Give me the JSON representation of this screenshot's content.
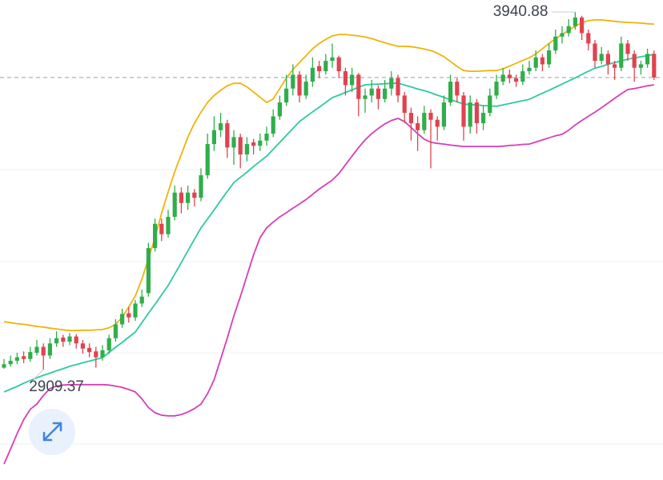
{
  "chart_data": {
    "type": "candlestick",
    "ylim": [
      2591,
      3975.5
    ],
    "up_color": "#2fae4b",
    "down_color": "#e0434f",
    "max_label": 3940.88,
    "min_label": 2909.37,
    "last_price_line": true,
    "open": [
      2915,
      2925,
      2935,
      2948,
      2940,
      2958,
      2975,
      2950,
      2985,
      3002,
      2990,
      3005,
      2985,
      2972,
      2962,
      2945,
      2965,
      3000,
      3040,
      3072,
      3060,
      3100,
      3130,
      3260,
      3330,
      3300,
      3350,
      3420,
      3390,
      3420,
      3405,
      3470,
      3560,
      3600,
      3620,
      3550,
      3580,
      3530,
      3565,
      3555,
      3570,
      3590,
      3640,
      3680,
      3720,
      3760,
      3700,
      3740,
      3785,
      3770,
      3800,
      3810,
      3770,
      3730,
      3760,
      3690,
      3700,
      3720,
      3690,
      3720,
      3750,
      3700,
      3650,
      3620,
      3600,
      3650,
      3630,
      3610,
      3680,
      3740,
      3700,
      3610,
      3680,
      3620,
      3650,
      3700,
      3740,
      3760,
      3750,
      3740,
      3770,
      3780,
      3810,
      3790,
      3830,
      3870,
      3880,
      3900,
      3925,
      3880,
      3850,
      3800,
      3820,
      3790,
      3780,
      3850,
      3820,
      3780,
      3790,
      3820
    ],
    "high": [
      2940,
      2950,
      2958,
      2962,
      2975,
      2995,
      2985,
      3000,
      3020,
      3010,
      3015,
      3012,
      2995,
      2985,
      2975,
      2980,
      3010,
      3055,
      3085,
      3090,
      3110,
      3140,
      3275,
      3345,
      3345,
      3370,
      3440,
      3435,
      3440,
      3430,
      3490,
      3590,
      3640,
      3650,
      3630,
      3600,
      3590,
      3580,
      3575,
      3590,
      3610,
      3660,
      3700,
      3760,
      3790,
      3770,
      3760,
      3810,
      3800,
      3820,
      3850,
      3815,
      3780,
      3780,
      3765,
      3720,
      3745,
      3730,
      3745,
      3770,
      3760,
      3710,
      3665,
      3640,
      3670,
      3660,
      3640,
      3700,
      3760,
      3750,
      3710,
      3700,
      3690,
      3670,
      3720,
      3760,
      3780,
      3775,
      3760,
      3790,
      3800,
      3830,
      3820,
      3850,
      3890,
      3900,
      3920,
      3940.88,
      3930,
      3890,
      3860,
      3840,
      3830,
      3800,
      3870,
      3860,
      3830,
      3800,
      3835,
      3830
    ],
    "low": [
      2912,
      2918,
      2925,
      2928,
      2932,
      2950,
      2909.37,
      2940,
      2975,
      2975,
      2980,
      2970,
      2955,
      2945,
      2915,
      2935,
      2955,
      2990,
      3030,
      3045,
      3050,
      3090,
      3120,
      3250,
      3280,
      3290,
      3340,
      3360,
      3370,
      3380,
      3395,
      3460,
      3540,
      3580,
      3520,
      3500,
      3490,
      3510,
      3530,
      3540,
      3555,
      3580,
      3630,
      3670,
      3700,
      3680,
      3690,
      3725,
      3750,
      3760,
      3780,
      3750,
      3700,
      3710,
      3640,
      3650,
      3680,
      3660,
      3680,
      3700,
      3680,
      3620,
      3570,
      3540,
      3590,
      3490,
      3570,
      3600,
      3670,
      3680,
      3570,
      3590,
      3590,
      3600,
      3640,
      3690,
      3730,
      3735,
      3725,
      3730,
      3760,
      3770,
      3770,
      3780,
      3820,
      3850,
      3870,
      3890,
      3860,
      3830,
      3780,
      3790,
      3760,
      3745,
      3770,
      3800,
      3740,
      3760,
      3780,
      3745
    ],
    "close": [
      2925,
      2935,
      2945,
      2940,
      2960,
      2975,
      2950,
      2985,
      3000,
      2990,
      3005,
      2985,
      2970,
      2960,
      2945,
      2965,
      3000,
      3040,
      3070,
      3060,
      3100,
      3120,
      3260,
      3330,
      3300,
      3350,
      3420,
      3390,
      3420,
      3405,
      3470,
      3560,
      3600,
      3620,
      3550,
      3580,
      3530,
      3560,
      3555,
      3570,
      3590,
      3640,
      3680,
      3720,
      3760,
      3700,
      3740,
      3780,
      3770,
      3800,
      3810,
      3770,
      3730,
      3760,
      3690,
      3700,
      3720,
      3690,
      3720,
      3750,
      3700,
      3650,
      3620,
      3600,
      3650,
      3630,
      3610,
      3680,
      3740,
      3700,
      3610,
      3680,
      3620,
      3650,
      3700,
      3740,
      3760,
      3750,
      3740,
      3770,
      3780,
      3810,
      3790,
      3830,
      3870,
      3880,
      3900,
      3925,
      3880,
      3850,
      3800,
      3820,
      3790,
      3780,
      3850,
      3820,
      3780,
      3790,
      3820,
      3752
    ],
    "bands": {
      "upper": {
        "color": "#f0b30a",
        "values": [
          3048,
          3045,
          3042,
          3040,
          3037,
          3034,
          3032,
          3029,
          3027,
          3024,
          3022,
          3022,
          3023,
          3023,
          3024,
          3025,
          3030,
          3040,
          3060,
          3090,
          3122,
          3170,
          3230,
          3290,
          3360,
          3422,
          3480,
          3530,
          3580,
          3620,
          3652,
          3680,
          3700,
          3715,
          3728,
          3735,
          3735,
          3725,
          3710,
          3695,
          3680,
          3690,
          3720,
          3750,
          3775,
          3795,
          3815,
          3835,
          3850,
          3862,
          3872,
          3876,
          3876,
          3874,
          3872,
          3869,
          3864,
          3858,
          3852,
          3847,
          3842,
          3842,
          3841,
          3838,
          3834,
          3830,
          3822,
          3812,
          3798,
          3784,
          3772,
          3770,
          3770,
          3771,
          3772,
          3772,
          3777,
          3785,
          3793,
          3801,
          3809,
          3820,
          3835,
          3850,
          3864,
          3876,
          3888,
          3900,
          3910,
          3916,
          3918,
          3918,
          3916,
          3914,
          3912,
          3911,
          3910,
          3909,
          3907,
          3906
        ]
      },
      "middle": {
        "color": "#2ec9a2",
        "values": [
          2845,
          2853,
          2861,
          2870,
          2878,
          2886,
          2893,
          2899,
          2906,
          2912,
          2919,
          2924,
          2929,
          2934,
          2939,
          2944,
          2959,
          2974,
          2988,
          3003,
          3018,
          3045,
          3072,
          3098,
          3125,
          3152,
          3185,
          3218,
          3252,
          3285,
          3318,
          3344,
          3370,
          3397,
          3423,
          3449,
          3464,
          3479,
          3495,
          3510,
          3525,
          3545,
          3565,
          3585,
          3605,
          3625,
          3639,
          3653,
          3666,
          3680,
          3694,
          3701,
          3709,
          3716,
          3724,
          3731,
          3732,
          3733,
          3734,
          3735,
          3736,
          3730,
          3725,
          3719,
          3714,
          3708,
          3701,
          3695,
          3688,
          3682,
          3675,
          3674,
          3673,
          3671,
          3670,
          3669,
          3673,
          3677,
          3681,
          3685,
          3689,
          3698,
          3707,
          3715,
          3724,
          3733,
          3742,
          3751,
          3761,
          3770,
          3779,
          3784,
          3790,
          3795,
          3800,
          3805,
          3808,
          3812,
          3815,
          3819
        ]
      },
      "lower": {
        "color": "#d63fb6",
        "values": [
          2637,
          2680,
          2725,
          2765,
          2795,
          2810,
          2835,
          2855,
          2862,
          2865,
          2866,
          2866,
          2866,
          2866,
          2866,
          2866,
          2865,
          2862,
          2858,
          2852,
          2845,
          2825,
          2800,
          2785,
          2778,
          2776,
          2776,
          2780,
          2787,
          2797,
          2810,
          2840,
          2880,
          2940,
          3000,
          3064,
          3120,
          3180,
          3240,
          3290,
          3318,
          3335,
          3350,
          3362,
          3375,
          3387,
          3400,
          3415,
          3430,
          3443,
          3456,
          3475,
          3500,
          3525,
          3550,
          3572,
          3590,
          3605,
          3618,
          3628,
          3634,
          3625,
          3608,
          3590,
          3574,
          3565,
          3562,
          3560,
          3557,
          3555,
          3553,
          3553,
          3553,
          3553,
          3553,
          3553,
          3554,
          3556,
          3557,
          3559,
          3560,
          3566,
          3572,
          3578,
          3584,
          3588,
          3600,
          3615,
          3628,
          3640,
          3652,
          3665,
          3678,
          3692,
          3705,
          3717,
          3720,
          3724,
          3728,
          3731
        ]
      }
    }
  }
}
